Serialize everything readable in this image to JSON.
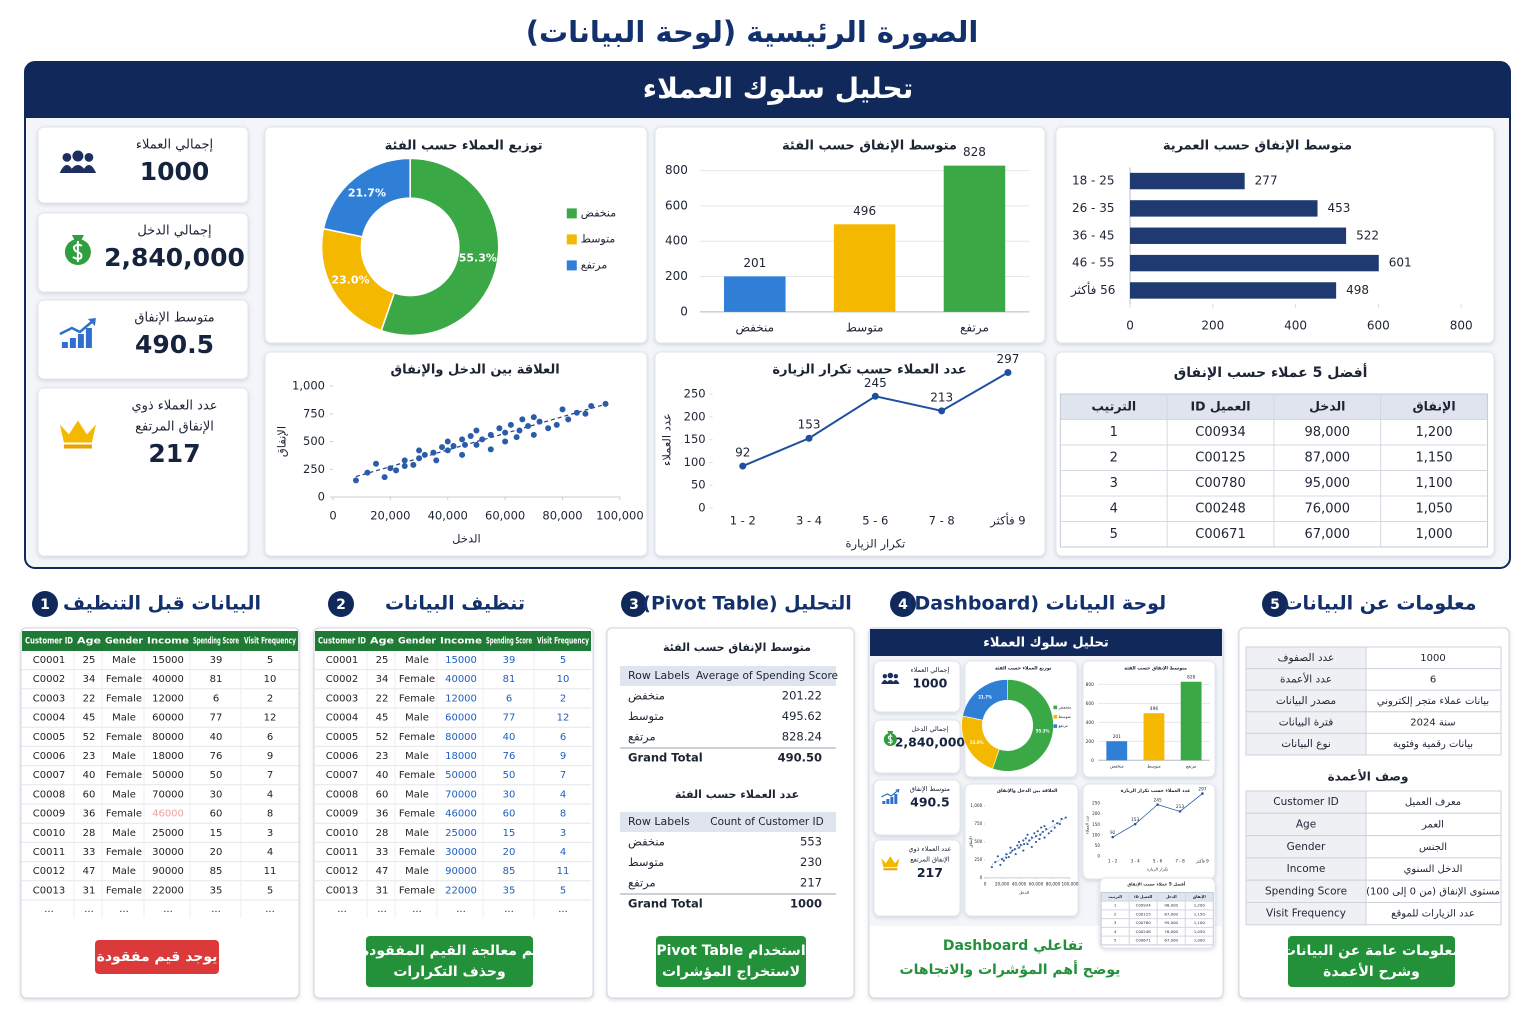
{
  "title": "الصورة الرئيسية (لوحة البيانات)",
  "dashboard": {
    "title": "تحليل سلوك العملاء",
    "kpis": [
      {
        "label": [
          "إجمالي العملاء"
        ],
        "value": "1000"
      },
      {
        "label": [
          "إجمالي الدخل"
        ],
        "value": "2,840,000"
      },
      {
        "label": [
          "متوسط الإنفاق"
        ],
        "value": "490.5"
      },
      {
        "label": [
          "عدد العملاء ذوي",
          "الإنفاق المرتفع"
        ],
        "value": "217"
      }
    ]
  },
  "chart_data": [
    {
      "type": "donut",
      "title": "توزيع العملاء حسب الفئة",
      "categories": [
        "منخفض",
        "متوسط",
        "مرتفع"
      ],
      "values": [
        55.3,
        23.0,
        21.7
      ],
      "value_labels": [
        "55.3%",
        "23.0%",
        "21.7%"
      ],
      "colors": [
        "#3aa845",
        "#f5b800",
        "#2f7fd6"
      ],
      "legend": "right"
    },
    {
      "type": "bar",
      "title": "متوسط الإنفاق حسب الفئة",
      "categories": [
        "منخفض",
        "متوسط",
        "مرتفع"
      ],
      "values": [
        201,
        496,
        828
      ],
      "colors": [
        "#2f7fd6",
        "#f5b800",
        "#3aa845"
      ],
      "ylim": [
        0,
        900
      ],
      "yticks": [
        0,
        200,
        400,
        600,
        800
      ],
      "grid": true
    },
    {
      "type": "barh",
      "title": "متوسط الإنفاق حسب العمرية",
      "categories": [
        "18 - 25",
        "26 - 35",
        "36 - 45",
        "46 - 55",
        "56 فأكثر"
      ],
      "values": [
        277,
        453,
        522,
        601,
        498
      ],
      "color": "#1f3a70",
      "xlim": [
        0,
        800
      ],
      "xticks": [
        0,
        200,
        400,
        600,
        800
      ],
      "grid": false
    },
    {
      "type": "scatter",
      "title": "العلاقة بين الدخل والإنفاق",
      "x_label": "الدخل",
      "y_label": "الإنفاق",
      "x": [
        8000,
        12000,
        15000,
        18000,
        20000,
        22000,
        25000,
        25000,
        28000,
        30000,
        30000,
        32000,
        35000,
        36000,
        38000,
        40000,
        40000,
        42000,
        45000,
        45000,
        46000,
        48000,
        50000,
        50000,
        52000,
        55000,
        55000,
        58000,
        60000,
        60000,
        62000,
        64000,
        65000,
        66000,
        68000,
        70000,
        70000,
        72000,
        75000,
        78000,
        80000,
        82000,
        85000,
        88000,
        90000,
        95000
      ],
      "values": [
        150,
        220,
        300,
        180,
        260,
        240,
        330,
        280,
        290,
        350,
        420,
        380,
        400,
        330,
        450,
        420,
        500,
        460,
        520,
        380,
        470,
        550,
        470,
        600,
        520,
        560,
        430,
        620,
        580,
        500,
        650,
        540,
        600,
        700,
        640,
        720,
        560,
        680,
        620,
        650,
        790,
        700,
        760,
        750,
        820,
        840
      ],
      "color": "#2a5caa",
      "xlim": [
        0,
        100000
      ],
      "xticks": [
        0,
        {
          "value": 20000,
          "label": "20,000"
        },
        {
          "value": 40000,
          "label": "40,000"
        },
        {
          "value": 60000,
          "label": "60,000"
        },
        {
          "value": 80000,
          "label": "80,000"
        },
        {
          "value": 100000,
          "label": "100,000"
        }
      ],
      "ylim": [
        0,
        1000
      ],
      "yticks": [
        0,
        250,
        500,
        750,
        {
          "value": 1000,
          "label": "1,000"
        }
      ],
      "trendline": true
    },
    {
      "type": "line",
      "title": "عدد العملاء حسب تكرار الزيارة",
      "x_label": "تكرار الزيارة",
      "y_label": "عدد العملاء",
      "categories": [
        "1 - 2",
        "3 - 4",
        "5 - 6",
        "7 - 8",
        "9 فأكثر"
      ],
      "values": [
        92,
        153,
        245,
        213,
        297
      ],
      "color": "#1f4fa0",
      "ylim": [
        0,
        300
      ],
      "yticks": [
        0,
        50,
        100,
        150,
        200,
        250
      ]
    }
  ],
  "top_table": {
    "title": "أفضل 5 عملاء حسب الإنفاق",
    "headers": [
      "الترتيب",
      "العميل ID",
      "الدخل",
      "الإنفاق"
    ],
    "rows": [
      [
        "1",
        "C00934",
        "98,000",
        "1,200"
      ],
      [
        "2",
        "C00125",
        "87,000",
        "1,150"
      ],
      [
        "3",
        "C00780",
        "95,000",
        "1,100"
      ],
      [
        "4",
        "C00248",
        "76,000",
        "1,050"
      ],
      [
        "5",
        "C00671",
        "67,000",
        "1,000"
      ]
    ]
  },
  "sections": [
    {
      "number": "1",
      "title": "البيانات قبل التنظيف",
      "note": [
        "يوجد قيم مفقودة"
      ]
    },
    {
      "number": "2",
      "title": "تنظيف البيانات",
      "note": [
        "تم معالجة القيم المفقودة",
        "وحذف التكرارات"
      ]
    },
    {
      "number": "3",
      "title": "التحليل (Pivot Table)",
      "note": [
        "استخدام Pivot Table",
        "لاستخراج المؤشرات"
      ]
    },
    {
      "number": "4",
      "title": "لوحة البيانات (Dashboard)",
      "note": [
        "تفاعلي Dashboard",
        "يوضح أهم المؤشرات والاتجاهات"
      ]
    },
    {
      "number": "5",
      "title": "معلومات عن البيانات",
      "note": [
        "معلومات عامة عن البيانات",
        "وشرح الأعمدة"
      ]
    }
  ],
  "sample_table": {
    "headers": [
      "Customer ID",
      "Age",
      "Gender",
      "Income",
      "Spending Score",
      "Visit Frequency"
    ],
    "rows": [
      [
        "C0001",
        "25",
        "Male",
        "15000",
        "39",
        "5"
      ],
      [
        "C0002",
        "34",
        "Female",
        "40000",
        "81",
        "10"
      ],
      [
        "C0003",
        "22",
        "Female",
        "12000",
        "6",
        "2"
      ],
      [
        "C0004",
        "45",
        "Male",
        "60000",
        "77",
        "12"
      ],
      [
        "C0005",
        "52",
        "Female",
        "80000",
        "40",
        "6"
      ],
      [
        "C0006",
        "23",
        "Male",
        "18000",
        "76",
        "9"
      ],
      [
        "C0007",
        "40",
        "Female",
        "50000",
        "50",
        "7"
      ],
      [
        "C0008",
        "60",
        "Male",
        "70000",
        "30",
        "4"
      ],
      [
        "C0009",
        "36",
        "Female",
        "46000",
        "60",
        "8"
      ],
      [
        "C0010",
        "28",
        "Male",
        "25000",
        "15",
        "3"
      ],
      [
        "C0011",
        "33",
        "Female",
        "30000",
        "20",
        "4"
      ],
      [
        "C0012",
        "47",
        "Male",
        "90000",
        "85",
        "11"
      ],
      [
        "C0013",
        "31",
        "Female",
        "22000",
        "35",
        "5"
      ]
    ],
    "ellipsis": "..."
  },
  "pivots": [
    {
      "title": "متوسط الإنفاق حسب الفئة",
      "headers": [
        "Row Labels",
        "Average of Spending Score"
      ],
      "rows": [
        [
          "منخفض",
          "201.22"
        ],
        [
          "متوسط",
          "495.62"
        ],
        [
          "مرتفع",
          "828.24"
        ]
      ],
      "total": [
        "Grand Total",
        "490.50"
      ]
    },
    {
      "title": "عدد العملاء حسب الفئة",
      "headers": [
        "Row Labels",
        "Count of Customer ID"
      ],
      "rows": [
        [
          "منخفض",
          "553"
        ],
        [
          "متوسط",
          "230"
        ],
        [
          "مرتفع",
          "217"
        ]
      ],
      "total": [
        "Grand Total",
        "1000"
      ]
    }
  ],
  "data_info": {
    "rows": [
      [
        "عدد الصفوف",
        "1000"
      ],
      [
        "عدد الأعمدة",
        "6"
      ],
      [
        "مصدر البيانات",
        "بيانات عملاء متجر إلكتروني"
      ],
      [
        "فترة البيانات",
        "سنة 2024"
      ],
      [
        "نوع البيانات",
        "بيانات رقمية وفئوية"
      ]
    ],
    "columns_title": "وصف الأعمدة",
    "columns": [
      [
        "Customer ID",
        "معرف العميل"
      ],
      [
        "Age",
        "العمر"
      ],
      [
        "Gender",
        "الجنس"
      ],
      [
        "Income",
        "الدخل السنوي"
      ],
      [
        "Spending Score",
        "مستوى الإنفاق (من 0 إلى 100)"
      ],
      [
        "Visit Frequency",
        "عدد الزيارات للموقع"
      ]
    ]
  }
}
